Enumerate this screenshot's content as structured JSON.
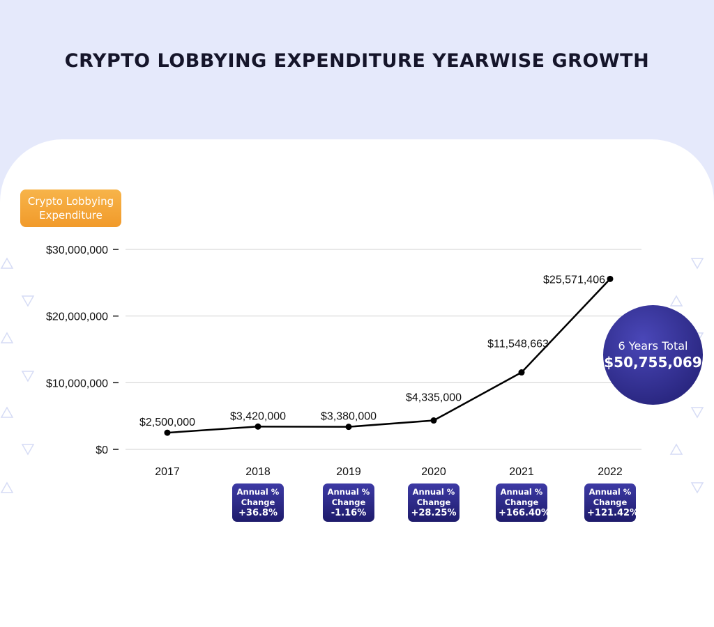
{
  "chart_data": {
    "type": "line",
    "title": "CRYPTO LOBBYING EXPENDITURE YEARWISE GROWTH",
    "ylabel": "Crypto Lobbying Expenditure",
    "xlabel": "",
    "categories": [
      "2017",
      "2018",
      "2019",
      "2020",
      "2021",
      "2022"
    ],
    "values": [
      2500000,
      3420000,
      3380000,
      4335000,
      11548663,
      25571406
    ],
    "data_labels": [
      "$2,500,000",
      "$3,420,000",
      "$3,380,000",
      "$4,335,000",
      "$11,548,663",
      "$25,571,406"
    ],
    "ylim": [
      0,
      30000000
    ],
    "yticks": [
      0,
      10000000,
      20000000,
      30000000
    ],
    "ytick_labels": [
      "$0",
      "$10,000,000",
      "$20,000,000",
      "$30,000,000"
    ],
    "grid": true,
    "annual_change": [
      {
        "year": "2018",
        "label": "Annual % Change",
        "value": "+36.8%"
      },
      {
        "year": "2019",
        "label": "Annual % Change",
        "value": "-1.16%"
      },
      {
        "year": "2020",
        "label": "Annual % Change",
        "value": "+28.25%"
      },
      {
        "year": "2021",
        "label": "Annual % Change",
        "value": "+166.40%"
      },
      {
        "year": "2022",
        "label": "Annual % Change",
        "value": "+121.42%"
      }
    ],
    "total": {
      "label": "6 Years Total",
      "value": "$50,755,069"
    }
  },
  "ylabel_line1": "Crypto Lobbying",
  "ylabel_line2": "Expenditure",
  "annual_line1": "Annual %",
  "annual_line2": "Change",
  "colors": {
    "background": "#e5e9fb",
    "badge": "#f4a63a",
    "accent": "#2a2785",
    "line": "#000000"
  }
}
